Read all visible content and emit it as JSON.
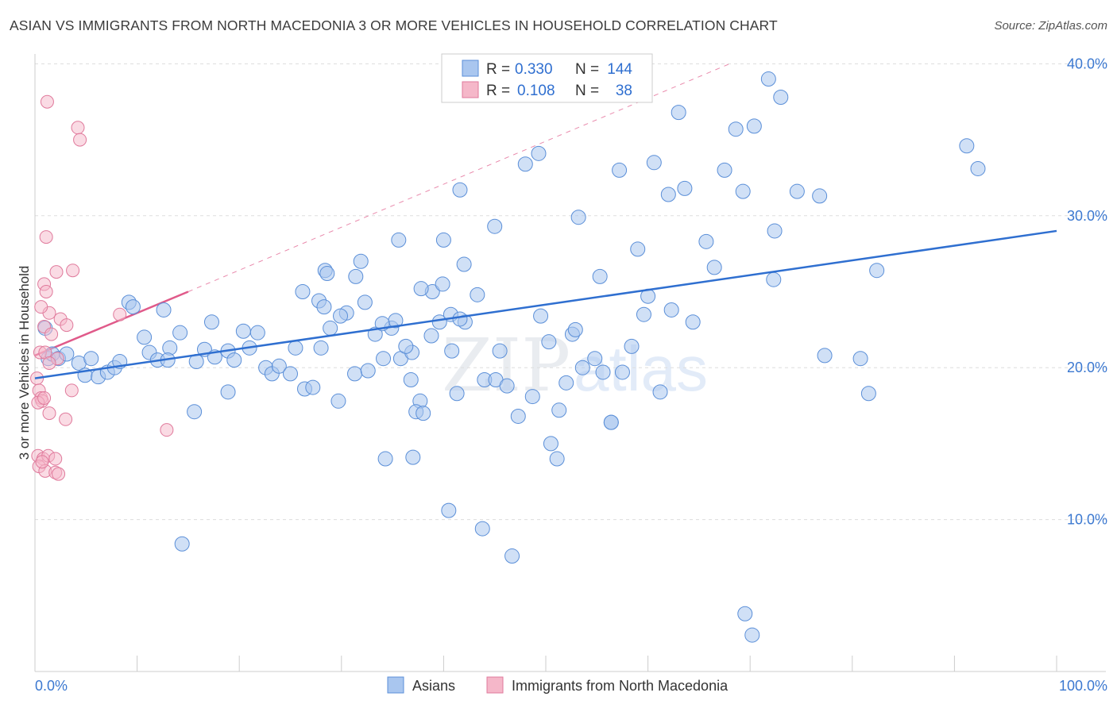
{
  "header": {
    "title": "ASIAN VS IMMIGRANTS FROM NORTH MACEDONIA 3 OR MORE VEHICLES IN HOUSEHOLD CORRELATION CHART",
    "source": "Source: ZipAtlas.com"
  },
  "watermark": {
    "zip": "ZIP",
    "atlas": "atlas"
  },
  "colors": {
    "blue_fill": "#a9c6ef",
    "blue_stroke": "#5b8fd8",
    "blue_line": "#2f6fd0",
    "pink_fill": "#f5b7c9",
    "pink_stroke": "#e07a9c",
    "pink_line": "#e05a8a",
    "grid": "#dddddd",
    "axis_text": "#3b78d0"
  },
  "legend": {
    "rows": [
      {
        "r_label": "R =",
        "r_value": "0.330",
        "n_label": "N =",
        "n_value": "144"
      },
      {
        "r_label": "R =",
        "r_value": "0.108",
        "n_label": "N =",
        "n_value": "38"
      }
    ]
  },
  "chart_data": {
    "type": "scatter",
    "title": "ASIAN VS IMMIGRANTS FROM NORTH MACEDONIA 3 OR MORE VEHICLES IN HOUSEHOLD CORRELATION CHART",
    "xlabel": "",
    "ylabel": "3 or more Vehicles in Household",
    "xlim": [
      0,
      100
    ],
    "ylim": [
      0,
      42
    ],
    "y_ticks": [
      10,
      20,
      30,
      40
    ],
    "y_tick_labels": [
      "10.0%",
      "20.0%",
      "30.0%",
      "40.0%"
    ],
    "x_tick_labels": [
      "0.0%",
      "100.0%"
    ],
    "legend_position": "top-center",
    "grid": true,
    "series": [
      {
        "name": "Asians",
        "R": 0.33,
        "N": 144,
        "trend": {
          "x": [
            0,
            100
          ],
          "y": [
            19.3,
            29.0
          ],
          "style": "solid"
        },
        "points": [
          [
            1,
            22.6
          ],
          [
            1.3,
            20.6
          ],
          [
            1.7,
            20.9
          ],
          [
            2.3,
            20.6
          ],
          [
            3.1,
            20.9
          ],
          [
            4.3,
            20.3
          ],
          [
            4.9,
            19.5
          ],
          [
            5.5,
            20.6
          ],
          [
            6.2,
            19.4
          ],
          [
            7.1,
            19.7
          ],
          [
            7.8,
            20.0
          ],
          [
            8.3,
            20.4
          ],
          [
            9.2,
            24.3
          ],
          [
            10.7,
            22.0
          ],
          [
            11.2,
            21.0
          ],
          [
            12.0,
            20.5
          ],
          [
            12.6,
            23.8
          ],
          [
            13.2,
            21.3
          ],
          [
            14.2,
            22.3
          ],
          [
            15.8,
            20.4
          ],
          [
            16.6,
            21.2
          ],
          [
            17.3,
            23.0
          ],
          [
            18.9,
            21.1
          ],
          [
            19.5,
            20.5
          ],
          [
            20.4,
            22.4
          ],
          [
            21.0,
            21.3
          ],
          [
            21.8,
            22.3
          ],
          [
            22.6,
            20.0
          ],
          [
            23.2,
            19.6
          ],
          [
            23.9,
            20.1
          ],
          [
            25.5,
            21.3
          ],
          [
            26.4,
            18.6
          ],
          [
            27.2,
            18.7
          ],
          [
            28.0,
            21.3
          ],
          [
            28.9,
            22.6
          ],
          [
            29.7,
            17.8
          ],
          [
            30.5,
            23.6
          ],
          [
            31.3,
            19.6
          ],
          [
            32.3,
            24.3
          ],
          [
            33.3,
            22.2
          ],
          [
            34.1,
            20.6
          ],
          [
            34.9,
            22.6
          ],
          [
            35.8,
            20.6
          ],
          [
            36.9,
            21.0
          ],
          [
            37.7,
            17.8
          ],
          [
            38.9,
            25.0
          ],
          [
            39.6,
            23.0
          ],
          [
            40.8,
            21.1
          ],
          [
            41.3,
            18.3
          ],
          [
            42.1,
            23.0
          ],
          [
            15.6,
            17.1
          ],
          [
            18.9,
            18.4
          ],
          [
            25.0,
            19.6
          ],
          [
            26.2,
            25.0
          ],
          [
            27.8,
            24.4
          ],
          [
            28.4,
            26.4
          ],
          [
            29.9,
            23.4
          ],
          [
            31.4,
            26.0
          ],
          [
            31.9,
            27.0
          ],
          [
            32.6,
            19.8
          ],
          [
            35.6,
            28.4
          ],
          [
            36.8,
            19.2
          ],
          [
            37.3,
            17.1
          ],
          [
            38.0,
            17.0
          ],
          [
            38.8,
            22.1
          ],
          [
            39.9,
            25.5
          ],
          [
            40.7,
            23.5
          ],
          [
            41.6,
            23.2
          ],
          [
            42.0,
            26.8
          ],
          [
            43.3,
            24.8
          ],
          [
            44.0,
            19.2
          ],
          [
            45.1,
            19.2
          ],
          [
            46.2,
            18.8
          ],
          [
            47.3,
            16.8
          ],
          [
            48.7,
            18.1
          ],
          [
            49.5,
            23.4
          ],
          [
            50.3,
            21.7
          ],
          [
            51.3,
            17.2
          ],
          [
            52.0,
            19.0
          ],
          [
            52.6,
            22.2
          ],
          [
            53.6,
            20.0
          ],
          [
            54.8,
            20.6
          ],
          [
            55.6,
            19.7
          ],
          [
            56.4,
            16.4
          ],
          [
            57.5,
            19.7
          ],
          [
            58.4,
            21.4
          ],
          [
            59.6,
            23.5
          ],
          [
            60.0,
            24.7
          ],
          [
            61.2,
            18.4
          ],
          [
            62.3,
            23.8
          ],
          [
            49.3,
            34.1
          ],
          [
            48.0,
            33.4
          ],
          [
            45.0,
            29.3
          ],
          [
            41.6,
            31.7
          ],
          [
            40.0,
            28.4
          ],
          [
            37.8,
            25.2
          ],
          [
            36.3,
            21.4
          ],
          [
            35.3,
            23.1
          ],
          [
            34.0,
            22.9
          ],
          [
            53.2,
            29.9
          ],
          [
            55.3,
            26.0
          ],
          [
            57.2,
            33.0
          ],
          [
            59.0,
            27.8
          ],
          [
            60.6,
            33.5
          ],
          [
            62.0,
            31.4
          ],
          [
            63.6,
            31.8
          ],
          [
            64.4,
            23.0
          ],
          [
            65.7,
            28.3
          ],
          [
            66.5,
            26.6
          ],
          [
            67.5,
            33.0
          ],
          [
            68.6,
            35.7
          ],
          [
            69.3,
            31.6
          ],
          [
            70.4,
            35.9
          ],
          [
            72.3,
            25.8
          ],
          [
            73.0,
            37.8
          ],
          [
            74.6,
            31.6
          ],
          [
            28.6,
            26.2
          ],
          [
            14.4,
            8.4
          ],
          [
            37.0,
            14.1
          ],
          [
            40.5,
            10.6
          ],
          [
            43.8,
            9.4
          ],
          [
            45.5,
            21.1
          ],
          [
            46.7,
            7.6
          ],
          [
            50.5,
            15.0
          ],
          [
            51.1,
            14.0
          ],
          [
            52.9,
            22.5
          ],
          [
            56.4,
            16.4
          ],
          [
            63.0,
            36.8
          ],
          [
            71.8,
            39.0
          ],
          [
            72.4,
            29.0
          ],
          [
            80.8,
            20.6
          ],
          [
            81.6,
            18.3
          ],
          [
            82.4,
            26.4
          ],
          [
            91.2,
            34.6
          ],
          [
            92.3,
            33.1
          ],
          [
            69.5,
            3.8
          ],
          [
            70.2,
            2.4
          ],
          [
            76.8,
            31.3
          ],
          [
            77.3,
            20.8
          ],
          [
            28.3,
            24.0
          ],
          [
            9.6,
            24.0
          ],
          [
            34.3,
            14.0
          ],
          [
            17.6,
            20.7
          ],
          [
            13.0,
            20.5
          ]
        ]
      },
      {
        "name": "Immigrants from North Macedonia",
        "R": 0.108,
        "N": 38,
        "trend": {
          "x": [
            0,
            15
          ],
          "y": [
            20.8,
            25.0
          ],
          "style": "solid",
          "extended": {
            "x": [
              15,
              68
            ],
            "y": [
              25.0,
              40.0
            ],
            "style": "dashed"
          }
        },
        "points": [
          [
            1.2,
            37.5
          ],
          [
            4.2,
            35.8
          ],
          [
            4.4,
            35.0
          ],
          [
            1.1,
            28.6
          ],
          [
            2.1,
            26.3
          ],
          [
            3.7,
            26.4
          ],
          [
            0.9,
            25.5
          ],
          [
            1.1,
            25.0
          ],
          [
            1.4,
            23.6
          ],
          [
            0.6,
            24.0
          ],
          [
            2.5,
            23.2
          ],
          [
            3.1,
            22.8
          ],
          [
            0.9,
            22.7
          ],
          [
            1.6,
            22.2
          ],
          [
            0.5,
            21.0
          ],
          [
            1.0,
            21.0
          ],
          [
            2.2,
            20.6
          ],
          [
            1.4,
            20.3
          ],
          [
            0.2,
            19.3
          ],
          [
            0.4,
            18.5
          ],
          [
            0.6,
            18.0
          ],
          [
            0.7,
            17.8
          ],
          [
            3.6,
            18.5
          ],
          [
            0.3,
            17.7
          ],
          [
            1.4,
            17.0
          ],
          [
            3.0,
            16.6
          ],
          [
            12.9,
            15.9
          ],
          [
            0.3,
            14.2
          ],
          [
            0.8,
            14.0
          ],
          [
            1.3,
            14.2
          ],
          [
            2.0,
            14.0
          ],
          [
            0.4,
            13.5
          ],
          [
            1.0,
            13.2
          ],
          [
            2.0,
            13.1
          ],
          [
            2.3,
            13.0
          ],
          [
            0.9,
            18.0
          ],
          [
            8.3,
            23.5
          ],
          [
            0.7,
            13.8
          ]
        ]
      }
    ]
  },
  "bottom_legend": {
    "items": [
      {
        "label": "Asians"
      },
      {
        "label": "Immigrants from North Macedonia"
      }
    ]
  }
}
